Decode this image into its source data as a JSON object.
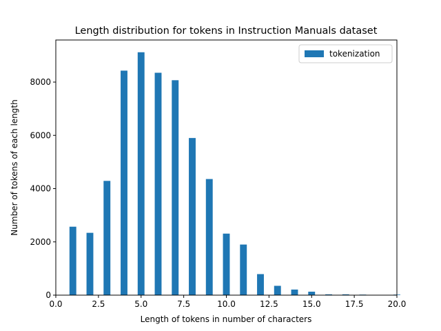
{
  "chart_data": {
    "type": "bar",
    "title": "Length distribution for tokens in Instruction Manuals dataset",
    "xlabel": "Length of tokens in number of characters",
    "ylabel": "Number of tokens of each length",
    "xlim": [
      0,
      20
    ],
    "ylim": [
      0,
      9580
    ],
    "x_ticks": [
      0,
      2.5,
      5,
      7.5,
      10,
      12.5,
      15,
      17.5,
      20
    ],
    "x_tick_labels": [
      "0.0",
      "2.5",
      "5.0",
      "7.5",
      "10.0",
      "12.5",
      "15.0",
      "17.5",
      "20.0"
    ],
    "y_ticks": [
      0,
      2000,
      4000,
      6000,
      8000
    ],
    "y_tick_labels": [
      "0",
      "2000",
      "4000",
      "6000",
      "8000"
    ],
    "grid": false,
    "legend_position": "top-right",
    "series": [
      {
        "name": "tokenization",
        "color": "#1f77b4",
        "x": [
          1,
          2,
          3,
          4,
          5,
          6,
          7,
          8,
          9,
          10,
          11,
          12,
          13,
          14,
          15,
          16,
          17,
          18,
          20
        ],
        "values": [
          2570,
          2340,
          4290,
          8430,
          9120,
          8350,
          8070,
          5900,
          4360,
          2310,
          1900,
          790,
          350,
          210,
          130,
          30,
          30,
          20,
          20
        ]
      }
    ]
  }
}
